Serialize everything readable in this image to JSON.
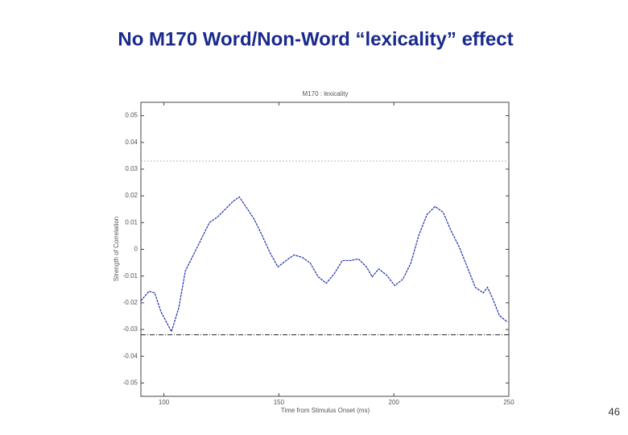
{
  "slide": {
    "title": "No M170 Word/Non-Word “lexicality” effect",
    "page_number": "46"
  },
  "chart_data": {
    "type": "line",
    "title": "M170 : lexicality",
    "xlabel": "Time from Stimulus Onset (ms)",
    "ylabel": "Strength of Correlation",
    "xlim": [
      90,
      250
    ],
    "ylim": [
      -0.055,
      0.055
    ],
    "xticks": [
      100,
      150,
      200,
      250
    ],
    "yticks": [
      0.05,
      0.04,
      0.03,
      0.02,
      0.01,
      0,
      -0.01,
      -0.02,
      -0.03,
      -0.04,
      -0.05
    ],
    "reference_lines": [
      0.033,
      -0.032
    ],
    "series": [
      {
        "color": "#1f2fa8",
        "x": [
          90,
          93.5,
          96,
          98.7,
          103.3,
          106.5,
          109.3,
          112.8,
          116.3,
          119.8,
          123.3,
          126.8,
          130.3,
          132.8,
          135.6,
          139.1,
          142.6,
          146.1,
          149.6,
          153.1,
          156.6,
          160.1,
          163.6,
          167.1,
          170.6,
          174.1,
          177.6,
          181.1,
          184.6,
          188.1,
          190.6,
          193.4,
          196.9,
          200.4,
          203.9,
          207.4,
          210.9,
          214.4,
          217.9,
          221.4,
          224.9,
          228.4,
          231.9,
          235.4,
          238.9,
          240.7,
          243.1,
          245.9,
          249.4
        ],
        "values": [
          -0.0193,
          -0.0157,
          -0.0163,
          -0.0233,
          -0.0308,
          -0.0218,
          -0.0082,
          -0.0021,
          0.0039,
          0.01,
          0.0121,
          0.0151,
          0.0181,
          0.0196,
          0.016,
          0.0115,
          0.0054,
          -0.0012,
          -0.0066,
          -0.0042,
          -0.0021,
          -0.003,
          -0.0051,
          -0.0103,
          -0.0127,
          -0.0091,
          -0.0042,
          -0.0042,
          -0.0036,
          -0.0066,
          -0.0103,
          -0.0073,
          -0.0097,
          -0.0136,
          -0.0112,
          -0.0051,
          0.0054,
          0.013,
          0.016,
          0.0139,
          0.0069,
          0.0009,
          -0.0066,
          -0.0142,
          -0.0163,
          -0.0142,
          -0.0187,
          -0.0248,
          -0.0272
        ]
      }
    ]
  }
}
